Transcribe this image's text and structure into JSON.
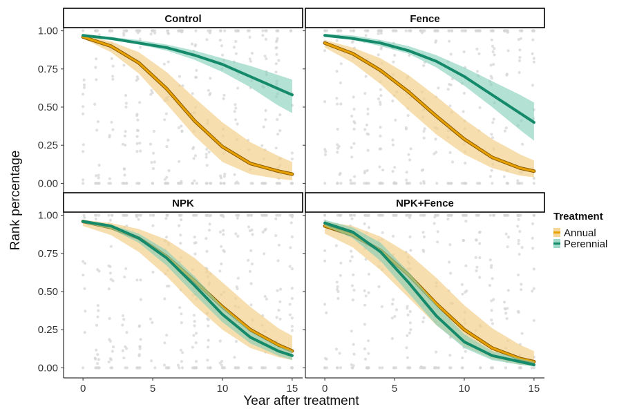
{
  "chart_data": {
    "type": "line",
    "description_kind": "faceted logistic fits with ribbons and jittered points",
    "xlabel": "Year after treatment",
    "ylabel": "Rank percentage",
    "xlim": [
      -0.6,
      15.6
    ],
    "ylim": [
      -0.03,
      1.03
    ],
    "x_ticks": [
      0,
      5,
      10,
      15
    ],
    "y_ticks": [
      0.0,
      0.25,
      0.5,
      0.75,
      1.0
    ],
    "y_tick_labels": [
      "0.00",
      "0.25",
      "0.50",
      "0.75",
      "1.00"
    ],
    "grid": false,
    "legend": {
      "title": "Treatment",
      "placement": "right",
      "entries": [
        {
          "label": "Annual",
          "line_color": "#E6A000",
          "fill_color": "#F5D799"
        },
        {
          "label": "Perennial",
          "line_color": "#148A6B",
          "fill_color": "#9FD9C8"
        }
      ]
    },
    "colors": {
      "annual_line": "#E6A000",
      "annual_band": "#F3D08C",
      "perennial_line": "#148A6B",
      "perennial_band": "#80CDB5",
      "points": "#D6D6D6",
      "strip_border": "#000000"
    },
    "panels": [
      {
        "strip": "Control",
        "series": [
          {
            "name": "Annual",
            "x": [
              0,
              2,
              4,
              6,
              8,
              10,
              12,
              14,
              15
            ],
            "y": [
              0.96,
              0.9,
              0.79,
              0.62,
              0.41,
              0.24,
              0.13,
              0.08,
              0.06
            ],
            "lower": [
              0.95,
              0.86,
              0.72,
              0.52,
              0.31,
              0.14,
              0.06,
              0.03,
              0.02
            ],
            "upper": [
              0.97,
              0.93,
              0.86,
              0.73,
              0.56,
              0.4,
              0.27,
              0.18,
              0.14
            ]
          },
          {
            "name": "Perennial",
            "x": [
              0,
              2,
              4,
              6,
              8,
              10,
              12,
              14,
              15
            ],
            "y": [
              0.97,
              0.95,
              0.92,
              0.89,
              0.84,
              0.78,
              0.7,
              0.62,
              0.58
            ],
            "lower": [
              0.96,
              0.94,
              0.91,
              0.87,
              0.81,
              0.73,
              0.63,
              0.51,
              0.46
            ],
            "upper": [
              0.975,
              0.96,
              0.94,
              0.91,
              0.87,
              0.82,
              0.77,
              0.71,
              0.68
            ]
          }
        ]
      },
      {
        "strip": "Fence",
        "series": [
          {
            "name": "Annual",
            "x": [
              0,
              2,
              4,
              6,
              8,
              10,
              12,
              14,
              15
            ],
            "y": [
              0.92,
              0.85,
              0.74,
              0.6,
              0.44,
              0.29,
              0.17,
              0.1,
              0.08
            ],
            "lower": [
              0.89,
              0.79,
              0.65,
              0.48,
              0.32,
              0.19,
              0.1,
              0.05,
              0.04
            ],
            "upper": [
              0.94,
              0.89,
              0.82,
              0.71,
              0.57,
              0.42,
              0.29,
              0.19,
              0.15
            ]
          },
          {
            "name": "Perennial",
            "x": [
              0,
              2,
              4,
              6,
              8,
              10,
              12,
              14,
              15
            ],
            "y": [
              0.97,
              0.95,
              0.92,
              0.87,
              0.8,
              0.7,
              0.58,
              0.46,
              0.4
            ],
            "lower": [
              0.96,
              0.94,
              0.9,
              0.85,
              0.76,
              0.64,
              0.5,
              0.35,
              0.28
            ],
            "upper": [
              0.98,
              0.97,
              0.94,
              0.9,
              0.84,
              0.76,
              0.67,
              0.58,
              0.53
            ]
          }
        ]
      },
      {
        "strip": "NPK",
        "series": [
          {
            "name": "Annual",
            "x": [
              0,
              2,
              4,
              6,
              8,
              10,
              12,
              14,
              15
            ],
            "y": [
              0.96,
              0.92,
              0.85,
              0.73,
              0.57,
              0.4,
              0.25,
              0.15,
              0.11
            ],
            "lower": [
              0.93,
              0.87,
              0.76,
              0.6,
              0.41,
              0.25,
              0.13,
              0.07,
              0.05
            ],
            "upper": [
              0.97,
              0.95,
              0.91,
              0.84,
              0.72,
              0.56,
              0.4,
              0.26,
              0.21
            ]
          },
          {
            "name": "Perennial",
            "x": [
              0,
              2,
              4,
              6,
              8,
              10,
              12,
              14,
              15
            ],
            "y": [
              0.96,
              0.93,
              0.85,
              0.72,
              0.54,
              0.35,
              0.2,
              0.11,
              0.08
            ],
            "lower": [
              0.95,
              0.91,
              0.82,
              0.67,
              0.48,
              0.3,
              0.16,
              0.08,
              0.05
            ],
            "upper": [
              0.97,
              0.94,
              0.88,
              0.77,
              0.6,
              0.4,
              0.24,
              0.14,
              0.11
            ]
          }
        ]
      },
      {
        "strip": "NPK+Fence",
        "series": [
          {
            "name": "Annual",
            "x": [
              0,
              2,
              4,
              6,
              8,
              10,
              12,
              14,
              15
            ],
            "y": [
              0.93,
              0.87,
              0.77,
              0.61,
              0.42,
              0.25,
              0.13,
              0.06,
              0.04
            ],
            "lower": [
              0.88,
              0.79,
              0.64,
              0.46,
              0.28,
              0.14,
              0.06,
              0.02,
              0.015
            ],
            "upper": [
              0.96,
              0.93,
              0.86,
              0.75,
              0.59,
              0.41,
              0.26,
              0.15,
              0.11
            ]
          },
          {
            "name": "Perennial",
            "x": [
              0,
              2,
              4,
              6,
              8,
              10,
              12,
              14,
              15
            ],
            "y": [
              0.95,
              0.89,
              0.76,
              0.56,
              0.34,
              0.17,
              0.08,
              0.04,
              0.02
            ],
            "lower": [
              0.93,
              0.85,
              0.7,
              0.49,
              0.28,
              0.13,
              0.05,
              0.02,
              0.01
            ],
            "upper": [
              0.97,
              0.92,
              0.82,
              0.63,
              0.41,
              0.22,
              0.11,
              0.06,
              0.04
            ]
          }
        ]
      }
    ]
  }
}
